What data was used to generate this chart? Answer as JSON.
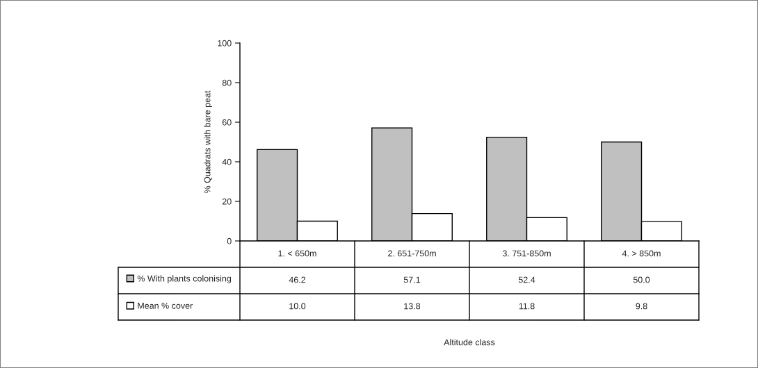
{
  "chart_data": {
    "type": "bar",
    "categories": [
      "1. < 650m",
      "2. 651-750m",
      "3. 751-850m",
      "4. > 850m"
    ],
    "series": [
      {
        "name": "% With plants colonising",
        "color": "#c0c0c0",
        "values": [
          46.2,
          57.1,
          52.4,
          50.0
        ],
        "value_labels": [
          "46.2",
          "57.1",
          "52.4",
          "50.0"
        ]
      },
      {
        "name": "Mean % cover",
        "color": "#ffffff",
        "values": [
          10.0,
          13.8,
          11.8,
          9.8
        ],
        "value_labels": [
          "10.0",
          "13.8",
          "11.8",
          "9.8"
        ]
      }
    ],
    "annotations": [
      "Altitude class"
    ],
    "ylabel": "% Quadrats with bare peat",
    "ylim": [
      0,
      100
    ],
    "yticks": [
      0,
      20,
      40,
      60,
      80,
      100
    ],
    "grid": false,
    "legend": "bottom left"
  }
}
